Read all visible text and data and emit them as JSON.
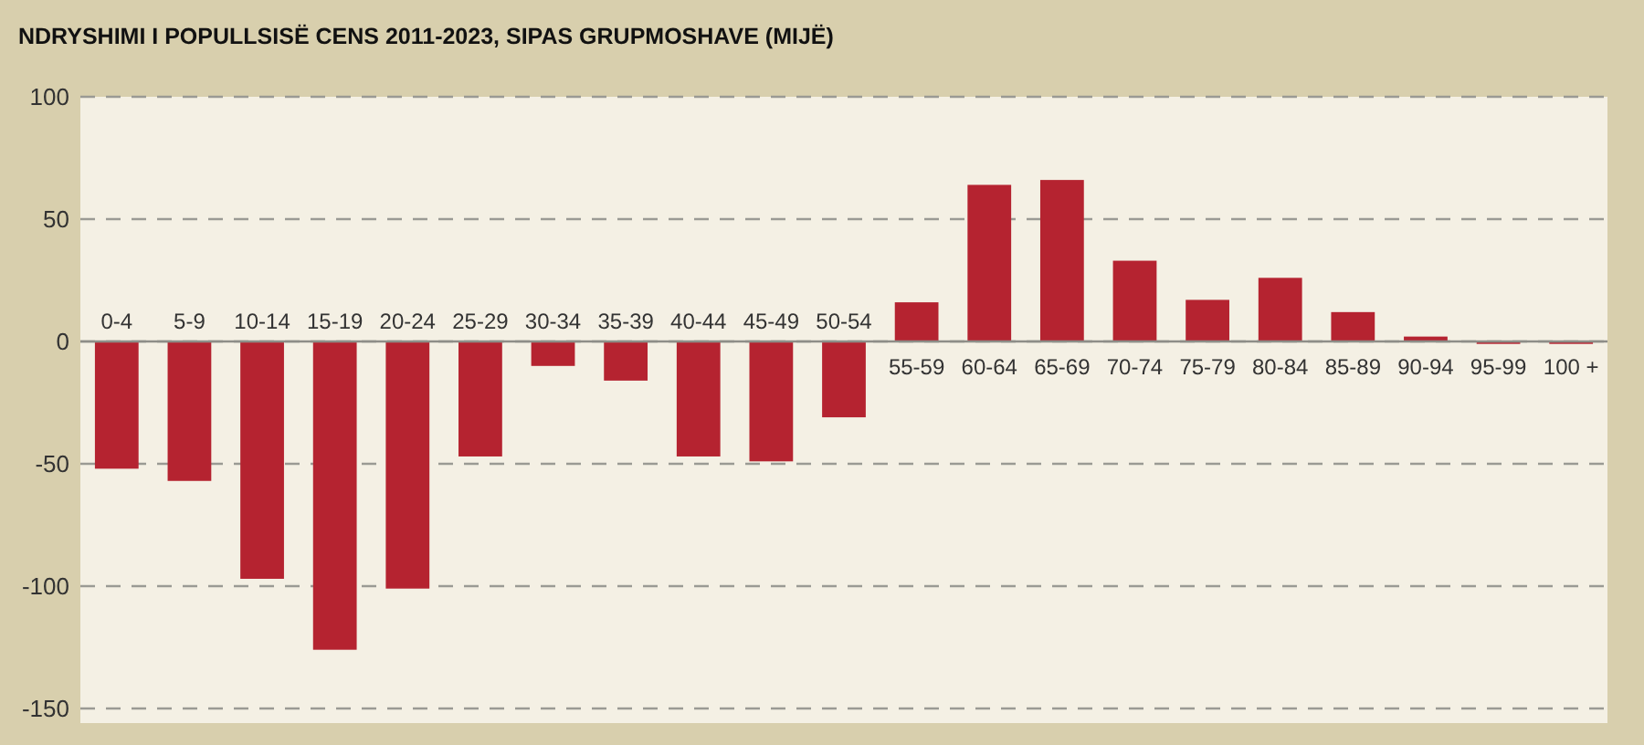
{
  "chart_data": {
    "type": "bar",
    "title": "NDRYSHIMI I POPULLSISË CENS 2011-2023, SIPAS GRUPMOSHAVE (MIJË)",
    "categories": [
      "0-4",
      "5-9",
      "10-14",
      "15-19",
      "20-24",
      "25-29",
      "30-34",
      "35-39",
      "40-44",
      "45-49",
      "50-54",
      "55-59",
      "60-64",
      "65-69",
      "70-74",
      "75-79",
      "80-84",
      "85-89",
      "90-94",
      "95-99",
      "100 +"
    ],
    "values": [
      -52,
      -57,
      -97,
      -126,
      -101,
      -47,
      -10,
      -16,
      -47,
      -49,
      -31,
      16,
      64,
      66,
      33,
      17,
      26,
      12,
      2,
      -1,
      -1
    ],
    "color": "#b52330",
    "ylim": [
      -150,
      100
    ],
    "yticks": [
      -150,
      -100,
      -50,
      0,
      50,
      100
    ],
    "grid": "y"
  }
}
